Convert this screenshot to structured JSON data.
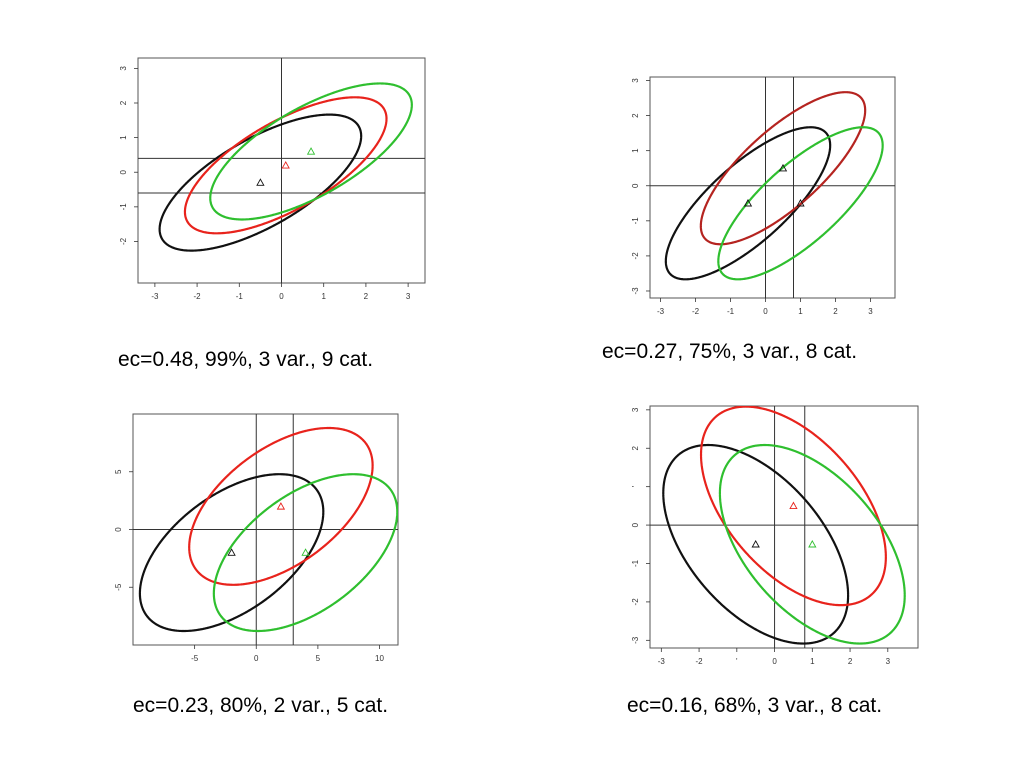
{
  "colors": {
    "black": "#111111",
    "red": "#e8231c",
    "green": "#2fbf2f",
    "darkred": "#b52420",
    "frame": "#555555"
  },
  "chart_data": [
    {
      "type": "scatter",
      "caption": "ec=0.48, 99%, 3 var., 9 cat.",
      "xlim": [
        -3.4,
        3.4
      ],
      "ylim": [
        -3.2,
        3.3
      ],
      "xticks": [
        -3,
        -2,
        -1,
        0,
        1,
        2,
        3
      ],
      "yticks": [
        -2,
        -1,
        0,
        1,
        2,
        3
      ],
      "vlines": [
        0
      ],
      "hlines": [
        0.4,
        -0.6
      ],
      "ellipses": [
        {
          "name": "black",
          "color": "black",
          "cx": -0.5,
          "cy": -0.3,
          "rx": 2.85,
          "ry": 1.2,
          "angle_deg": 37
        },
        {
          "name": "red",
          "color": "red",
          "cx": 0.1,
          "cy": 0.2,
          "rx": 2.85,
          "ry": 1.2,
          "angle_deg": 37
        },
        {
          "name": "green",
          "color": "green",
          "cx": 0.7,
          "cy": 0.6,
          "rx": 2.85,
          "ry": 1.2,
          "angle_deg": 37
        }
      ],
      "centers": [
        {
          "color": "black",
          "x": -0.5,
          "y": -0.3
        },
        {
          "color": "red",
          "x": 0.1,
          "y": 0.2
        },
        {
          "color": "green",
          "x": 0.7,
          "y": 0.6
        }
      ]
    },
    {
      "type": "scatter",
      "caption": "ec=0.27, 75%, 3 var., 8 cat.",
      "xlim": [
        -3.3,
        3.7
      ],
      "ylim": [
        -3.2,
        3.1
      ],
      "xticks": [
        -3,
        -2,
        -1,
        0,
        1,
        2,
        3
      ],
      "yticks": [
        -3,
        -2,
        -1,
        0,
        1,
        2,
        3
      ],
      "vlines": [
        0,
        0.8
      ],
      "hlines": [
        0
      ],
      "ellipses": [
        {
          "name": "black",
          "color": "black",
          "cx": -0.5,
          "cy": -0.5,
          "rx": 3.0,
          "ry": 1.1,
          "angle_deg": 42
        },
        {
          "name": "darkred",
          "color": "darkred",
          "cx": 0.5,
          "cy": 0.5,
          "rx": 3.0,
          "ry": 1.1,
          "angle_deg": 42
        },
        {
          "name": "green",
          "color": "green",
          "cx": 1.0,
          "cy": -0.5,
          "rx": 3.0,
          "ry": 1.1,
          "angle_deg": 42
        }
      ],
      "centers": [
        {
          "color": "black",
          "x": -0.5,
          "y": -0.5
        },
        {
          "color": "black",
          "x": 0.5,
          "y": 0.5
        },
        {
          "color": "black",
          "x": 1.0,
          "y": -0.5
        }
      ]
    },
    {
      "type": "scatter",
      "caption": "ec=0.23, 80%, 2 var., 5 cat.",
      "xlim": [
        -10,
        11.5
      ],
      "ylim": [
        -10,
        10
      ],
      "xticks": [
        -5,
        0,
        5,
        10
      ],
      "yticks": [
        -5,
        0,
        5
      ],
      "vlines": [
        0,
        3
      ],
      "hlines": [
        0
      ],
      "ellipses": [
        {
          "name": "black",
          "color": "black",
          "cx": -2,
          "cy": -2,
          "rx": 8.8,
          "ry": 4.9,
          "angle_deg": 40
        },
        {
          "name": "red",
          "color": "red",
          "cx": 2,
          "cy": 2,
          "rx": 8.8,
          "ry": 4.9,
          "angle_deg": 40
        },
        {
          "name": "green",
          "color": "green",
          "cx": 4,
          "cy": -2,
          "rx": 8.8,
          "ry": 4.9,
          "angle_deg": 40
        }
      ],
      "centers": [
        {
          "color": "black",
          "x": -2,
          "y": -2
        },
        {
          "color": "red",
          "x": 2,
          "y": 2
        },
        {
          "color": "green",
          "x": 4,
          "y": -2
        }
      ]
    },
    {
      "type": "scatter",
      "caption": "ec=0.16, 68%, 3 var., 8 cat.",
      "xlim": [
        -3.3,
        3.8
      ],
      "ylim": [
        -3.2,
        3.1
      ],
      "xticks": [
        -3,
        -2,
        -1,
        0,
        1,
        2,
        3
      ],
      "yticks": [
        -3,
        -2,
        -1,
        0,
        1,
        2,
        3
      ],
      "xtick_labels": [
        "-3",
        "-2",
        "'",
        "0",
        "1",
        "2",
        "3"
      ],
      "ytick_labels": [
        "-3",
        "-2",
        "-1",
        "0",
        "'",
        "2",
        "3"
      ],
      "vlines": [
        0,
        0.8
      ],
      "hlines": [
        0
      ],
      "ellipses": [
        {
          "name": "black",
          "color": "black",
          "cx": -0.5,
          "cy": -0.5,
          "rx": 3.1,
          "ry": 1.75,
          "angle_deg": -48
        },
        {
          "name": "red",
          "color": "red",
          "cx": 0.5,
          "cy": 0.5,
          "rx": 3.1,
          "ry": 1.75,
          "angle_deg": -48
        },
        {
          "name": "green",
          "color": "green",
          "cx": 1.0,
          "cy": -0.5,
          "rx": 3.1,
          "ry": 1.75,
          "angle_deg": -48
        }
      ],
      "centers": [
        {
          "color": "black",
          "x": -0.5,
          "y": -0.5
        },
        {
          "color": "red",
          "x": 0.5,
          "y": 0.5
        },
        {
          "color": "green",
          "x": 1.0,
          "y": -0.5
        }
      ]
    }
  ]
}
